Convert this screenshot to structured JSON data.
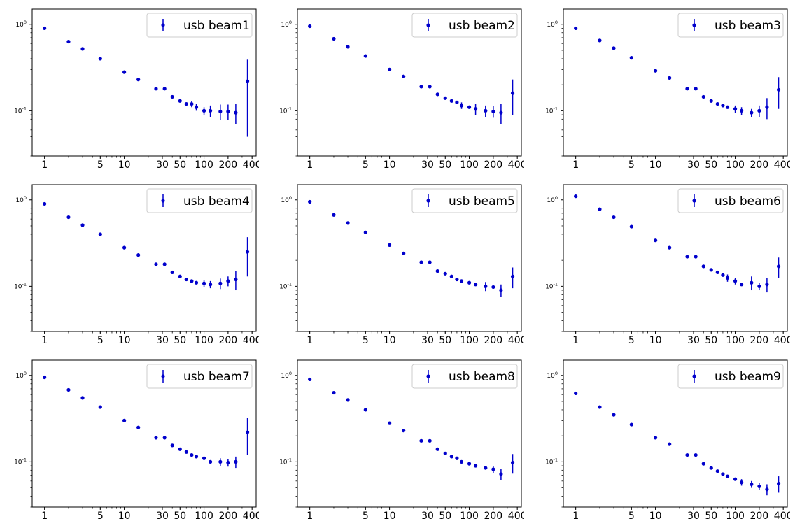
{
  "chart_data": [
    {
      "type": "scatter",
      "legend": "usb beam1",
      "legend_loc": "upper right",
      "xscale": "log",
      "yscale": "log",
      "xlim": [
        0.7,
        450
      ],
      "ylim": [
        0.03,
        1.5
      ],
      "xticks": [
        1,
        5,
        10,
        30,
        50,
        100,
        200,
        400
      ],
      "xtick_labels": [
        "1",
        "5",
        "10",
        "30",
        "50",
        "100",
        "200",
        "400"
      ],
      "yticks": [
        1,
        0.1
      ],
      "ytick_labels": [
        "10^0",
        "10^-1"
      ],
      "color": "#0000cc",
      "series": [
        {
          "name": "usb beam1",
          "x": [
            1,
            2,
            3,
            5,
            10,
            15,
            25,
            32,
            40,
            50,
            60,
            70,
            80,
            100,
            120,
            160,
            200,
            250,
            350
          ],
          "y": [
            0.9,
            0.63,
            0.52,
            0.4,
            0.28,
            0.23,
            0.18,
            0.18,
            0.145,
            0.13,
            0.12,
            0.12,
            0.11,
            0.1,
            0.1,
            0.098,
            0.098,
            0.095,
            0.22
          ],
          "err": [
            0,
            0,
            0,
            0,
            0,
            0,
            0,
            0,
            0,
            0,
            0,
            0.01,
            0.01,
            0.01,
            0.015,
            0.02,
            0.02,
            0.025,
            0.17
          ]
        }
      ]
    },
    {
      "type": "scatter",
      "legend": "usb beam2",
      "legend_loc": "upper right",
      "xscale": "log",
      "yscale": "log",
      "xlim": [
        0.7,
        450
      ],
      "ylim": [
        0.03,
        1.5
      ],
      "xticks": [
        1,
        5,
        10,
        30,
        50,
        100,
        200,
        400
      ],
      "xtick_labels": [
        "1",
        "5",
        "10",
        "30",
        "50",
        "100",
        "200",
        "400"
      ],
      "yticks": [
        1,
        0.1
      ],
      "ytick_labels": [
        "10^0",
        "10^-1"
      ],
      "color": "#0000cc",
      "series": [
        {
          "name": "usb beam2",
          "x": [
            1,
            2,
            3,
            5,
            10,
            15,
            25,
            32,
            40,
            50,
            60,
            70,
            80,
            100,
            120,
            160,
            200,
            250,
            350
          ],
          "y": [
            0.95,
            0.68,
            0.55,
            0.43,
            0.3,
            0.25,
            0.19,
            0.19,
            0.155,
            0.14,
            0.13,
            0.125,
            0.115,
            0.11,
            0.105,
            0.1,
            0.098,
            0.095,
            0.16
          ],
          "err": [
            0,
            0,
            0,
            0,
            0,
            0,
            0,
            0,
            0,
            0,
            0,
            0,
            0.01,
            0,
            0.015,
            0.015,
            0.015,
            0.025,
            0.07
          ]
        }
      ]
    },
    {
      "type": "scatter",
      "legend": "usb beam3",
      "legend_loc": "upper right",
      "xscale": "log",
      "yscale": "log",
      "xlim": [
        0.7,
        450
      ],
      "ylim": [
        0.03,
        1.5
      ],
      "xticks": [
        1,
        5,
        10,
        30,
        50,
        100,
        200,
        400
      ],
      "xtick_labels": [
        "1",
        "5",
        "10",
        "30",
        "50",
        "100",
        "200",
        "400"
      ],
      "yticks": [
        1,
        0.1
      ],
      "ytick_labels": [
        "10^0",
        "10^-1"
      ],
      "color": "#0000cc",
      "series": [
        {
          "name": "usb beam3",
          "x": [
            1,
            2,
            3,
            5,
            10,
            15,
            25,
            32,
            40,
            50,
            60,
            70,
            80,
            100,
            120,
            160,
            200,
            250,
            350
          ],
          "y": [
            0.9,
            0.65,
            0.53,
            0.41,
            0.29,
            0.24,
            0.18,
            0.18,
            0.145,
            0.13,
            0.12,
            0.115,
            0.11,
            0.105,
            0.1,
            0.095,
            0.1,
            0.11,
            0.175
          ],
          "err": [
            0,
            0,
            0,
            0,
            0,
            0,
            0,
            0,
            0,
            0,
            0,
            0,
            0,
            0.01,
            0.01,
            0.01,
            0.015,
            0.03,
            0.07
          ]
        }
      ]
    },
    {
      "type": "scatter",
      "legend": "usb beam4",
      "legend_loc": "upper right",
      "xscale": "log",
      "yscale": "log",
      "xlim": [
        0.7,
        450
      ],
      "ylim": [
        0.03,
        1.5
      ],
      "xticks": [
        1,
        5,
        10,
        30,
        50,
        100,
        200,
        400
      ],
      "xtick_labels": [
        "1",
        "5",
        "10",
        "30",
        "50",
        "100",
        "200",
        "400"
      ],
      "yticks": [
        1,
        0.1
      ],
      "ytick_labels": [
        "10^0",
        "10^-1"
      ],
      "color": "#0000cc",
      "series": [
        {
          "name": "usb beam4",
          "x": [
            1,
            2,
            3,
            5,
            10,
            15,
            25,
            32,
            40,
            50,
            60,
            70,
            80,
            100,
            120,
            160,
            200,
            250,
            350
          ],
          "y": [
            0.9,
            0.63,
            0.51,
            0.4,
            0.28,
            0.23,
            0.18,
            0.18,
            0.145,
            0.13,
            0.12,
            0.115,
            0.11,
            0.108,
            0.105,
            0.108,
            0.115,
            0.12,
            0.25
          ],
          "err": [
            0,
            0,
            0,
            0,
            0,
            0,
            0,
            0,
            0,
            0,
            0,
            0,
            0,
            0.01,
            0.01,
            0.015,
            0.015,
            0.03,
            0.12
          ]
        }
      ]
    },
    {
      "type": "scatter",
      "legend": "usb beam5",
      "legend_loc": "upper right",
      "xscale": "log",
      "yscale": "log",
      "xlim": [
        0.7,
        450
      ],
      "ylim": [
        0.03,
        1.5
      ],
      "xticks": [
        1,
        5,
        10,
        30,
        50,
        100,
        200,
        400
      ],
      "xtick_labels": [
        "1",
        "5",
        "10",
        "30",
        "50",
        "100",
        "200",
        "400"
      ],
      "yticks": [
        1,
        0.1
      ],
      "ytick_labels": [
        "10^0",
        "10^-1"
      ],
      "color": "#0000cc",
      "series": [
        {
          "name": "usb beam5",
          "x": [
            1,
            2,
            3,
            5,
            10,
            15,
            25,
            32,
            40,
            50,
            60,
            70,
            80,
            100,
            120,
            160,
            200,
            250,
            350
          ],
          "y": [
            0.95,
            0.67,
            0.54,
            0.42,
            0.3,
            0.24,
            0.19,
            0.19,
            0.15,
            0.14,
            0.13,
            0.12,
            0.115,
            0.11,
            0.105,
            0.1,
            0.098,
            0.09,
            0.13
          ],
          "err": [
            0,
            0,
            0,
            0,
            0,
            0,
            0,
            0,
            0,
            0,
            0,
            0,
            0,
            0,
            0,
            0.012,
            0,
            0.015,
            0.035
          ]
        }
      ]
    },
    {
      "type": "scatter",
      "legend": "usb beam6",
      "legend_loc": "upper right",
      "xscale": "log",
      "yscale": "log",
      "xlim": [
        0.7,
        450
      ],
      "ylim": [
        0.03,
        1.5
      ],
      "xticks": [
        1,
        5,
        10,
        30,
        50,
        100,
        200,
        400
      ],
      "xtick_labels": [
        "1",
        "5",
        "10",
        "30",
        "50",
        "100",
        "200",
        "400"
      ],
      "yticks": [
        1,
        0.1
      ],
      "ytick_labels": [
        "10^0",
        "10^-1"
      ],
      "color": "#0000cc",
      "series": [
        {
          "name": "usb beam6",
          "x": [
            1,
            2,
            3,
            5,
            10,
            15,
            25,
            32,
            40,
            50,
            60,
            70,
            80,
            100,
            120,
            160,
            200,
            250,
            350
          ],
          "y": [
            1.1,
            0.78,
            0.63,
            0.49,
            0.34,
            0.28,
            0.22,
            0.22,
            0.17,
            0.155,
            0.145,
            0.135,
            0.125,
            0.115,
            0.105,
            0.11,
            0.1,
            0.105,
            0.17
          ],
          "err": [
            0,
            0,
            0,
            0,
            0,
            0,
            0,
            0,
            0,
            0,
            0,
            0,
            0.012,
            0.01,
            0,
            0.02,
            0.01,
            0.02,
            0.045
          ]
        }
      ]
    },
    {
      "type": "scatter",
      "legend": "usb beam7",
      "legend_loc": "upper right",
      "xscale": "log",
      "yscale": "log",
      "xlim": [
        0.7,
        450
      ],
      "ylim": [
        0.03,
        1.5
      ],
      "xticks": [
        1,
        5,
        10,
        30,
        50,
        100,
        200,
        400
      ],
      "xtick_labels": [
        "1",
        "5",
        "10",
        "30",
        "50",
        "100",
        "200",
        "400"
      ],
      "yticks": [
        1,
        0.1
      ],
      "ytick_labels": [
        "10^0",
        "10^-1"
      ],
      "color": "#0000cc",
      "series": [
        {
          "name": "usb beam7",
          "x": [
            1,
            2,
            3,
            5,
            10,
            15,
            25,
            32,
            40,
            50,
            60,
            70,
            80,
            100,
            120,
            160,
            200,
            250,
            350
          ],
          "y": [
            0.95,
            0.68,
            0.55,
            0.43,
            0.3,
            0.25,
            0.19,
            0.19,
            0.155,
            0.14,
            0.13,
            0.12,
            0.115,
            0.11,
            0.1,
            0.1,
            0.098,
            0.1,
            0.22
          ],
          "err": [
            0,
            0,
            0,
            0,
            0,
            0,
            0,
            0,
            0,
            0,
            0,
            0,
            0,
            0,
            0,
            0.01,
            0.01,
            0.015,
            0.1
          ]
        }
      ]
    },
    {
      "type": "scatter",
      "legend": "usb beam8",
      "legend_loc": "upper right",
      "xscale": "log",
      "yscale": "log",
      "xlim": [
        0.7,
        450
      ],
      "ylim": [
        0.03,
        1.5
      ],
      "xticks": [
        1,
        5,
        10,
        30,
        50,
        100,
        200,
        400
      ],
      "xtick_labels": [
        "1",
        "5",
        "10",
        "30",
        "50",
        "100",
        "200",
        "400"
      ],
      "yticks": [
        1,
        0.1
      ],
      "ytick_labels": [
        "10^0",
        "10^-1"
      ],
      "color": "#0000cc",
      "series": [
        {
          "name": "usb beam8",
          "x": [
            1,
            2,
            3,
            5,
            10,
            15,
            25,
            32,
            40,
            50,
            60,
            70,
            80,
            100,
            120,
            160,
            200,
            250,
            350
          ],
          "y": [
            0.9,
            0.63,
            0.52,
            0.4,
            0.28,
            0.23,
            0.175,
            0.175,
            0.14,
            0.125,
            0.115,
            0.11,
            0.1,
            0.095,
            0.09,
            0.085,
            0.082,
            0.072,
            0.098
          ],
          "err": [
            0,
            0,
            0,
            0,
            0,
            0,
            0,
            0,
            0,
            0,
            0,
            0,
            0,
            0,
            0,
            0,
            0.008,
            0.01,
            0.025
          ]
        }
      ]
    },
    {
      "type": "scatter",
      "legend": "usb beam9",
      "legend_loc": "upper right",
      "xscale": "log",
      "yscale": "log",
      "xlim": [
        0.7,
        450
      ],
      "ylim": [
        0.03,
        1.5
      ],
      "xticks": [
        1,
        5,
        10,
        30,
        50,
        100,
        200,
        400
      ],
      "xtick_labels": [
        "1",
        "5",
        "10",
        "30",
        "50",
        "100",
        "200",
        "400"
      ],
      "yticks": [
        1,
        0.1
      ],
      "ytick_labels": [
        "10^0",
        "10^-1"
      ],
      "color": "#0000cc",
      "series": [
        {
          "name": "usb beam9",
          "x": [
            1,
            2,
            3,
            5,
            10,
            15,
            25,
            32,
            40,
            50,
            60,
            70,
            80,
            100,
            120,
            160,
            200,
            250,
            350
          ],
          "y": [
            0.62,
            0.43,
            0.35,
            0.27,
            0.19,
            0.16,
            0.12,
            0.12,
            0.095,
            0.085,
            0.078,
            0.072,
            0.068,
            0.063,
            0.058,
            0.055,
            0.052,
            0.048,
            0.056
          ],
          "err": [
            0,
            0,
            0,
            0,
            0,
            0,
            0,
            0,
            0,
            0,
            0,
            0,
            0,
            0,
            0.005,
            0.005,
            0.005,
            0.007,
            0.012
          ]
        }
      ]
    }
  ]
}
